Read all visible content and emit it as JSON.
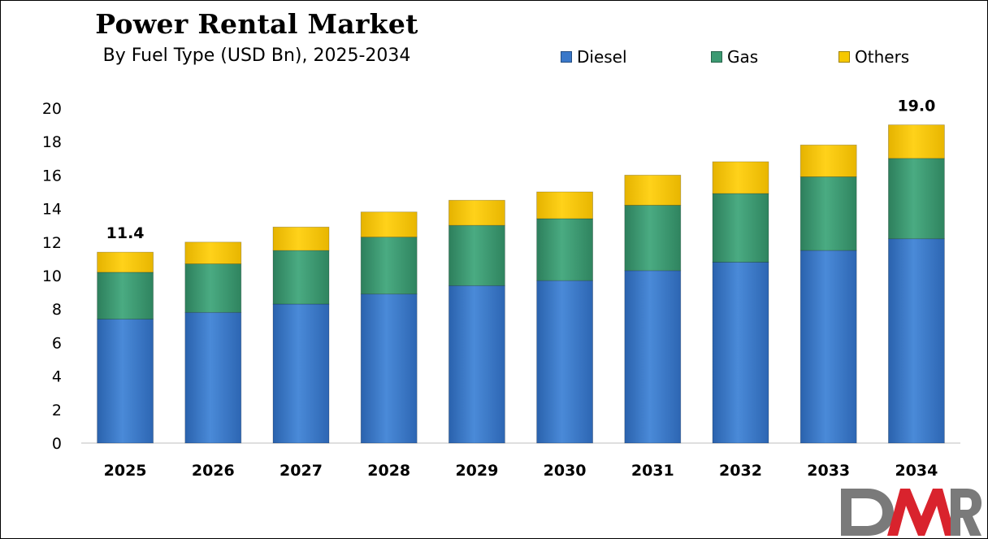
{
  "title": "Power Rental Market",
  "subtitle": "By Fuel Type (USD Bn), 2025-2034",
  "legend": [
    {
      "label": "Diesel",
      "color": "#3a78c9"
    },
    {
      "label": "Gas",
      "color": "#3c9a72"
    },
    {
      "label": "Others",
      "color": "#f6c800"
    }
  ],
  "logo_text": "DMR",
  "chart_data": {
    "type": "bar",
    "stacked": true,
    "categories": [
      "2025",
      "2026",
      "2027",
      "2028",
      "2029",
      "2030",
      "2031",
      "2032",
      "2033",
      "2034"
    ],
    "series": [
      {
        "name": "Diesel",
        "color": "#3a78c9",
        "values": [
          7.4,
          7.8,
          8.3,
          8.9,
          9.4,
          9.7,
          10.3,
          10.8,
          11.5,
          12.2
        ]
      },
      {
        "name": "Gas",
        "color": "#3c9a72",
        "values": [
          2.8,
          2.9,
          3.2,
          3.4,
          3.6,
          3.7,
          3.9,
          4.1,
          4.4,
          4.8
        ]
      },
      {
        "name": "Others",
        "color": "#f6c800",
        "values": [
          1.2,
          1.3,
          1.4,
          1.5,
          1.5,
          1.6,
          1.8,
          1.9,
          1.9,
          2.0
        ]
      }
    ],
    "data_labels": [
      {
        "category": "2025",
        "text": "11.4"
      },
      {
        "category": "2034",
        "text": "19.0"
      }
    ],
    "ylim": [
      0,
      20
    ],
    "yticks": [
      "0",
      "2",
      "4",
      "6",
      "8",
      "10",
      "12",
      "14",
      "16",
      "18",
      "20"
    ],
    "grid": false,
    "legend_position": "top-right"
  }
}
